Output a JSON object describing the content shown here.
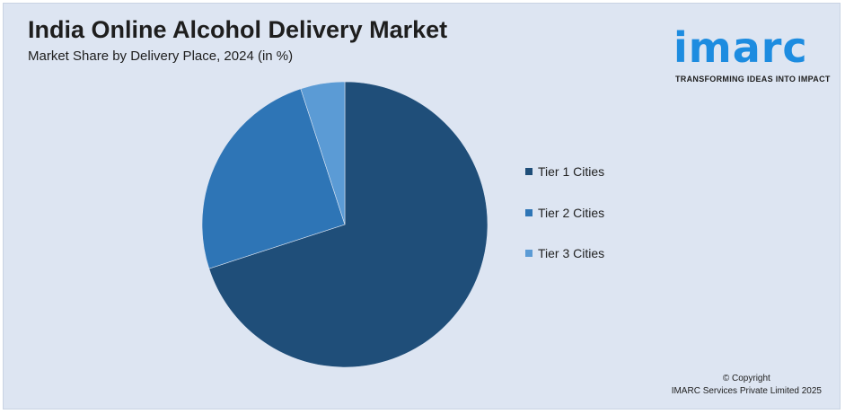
{
  "header": {
    "title": "India Online Alcohol Delivery Market",
    "subtitle": "Market Share by Delivery Place, 2024 (in %)"
  },
  "logo": {
    "wordmark": "imarc",
    "tagline": "TRANSFORMING IDEAS INTO IMPACT",
    "color": "#1d8ce0"
  },
  "chart_data": {
    "type": "pie",
    "categories": [
      "Tier 1 Cities",
      "Tier 2 Cities",
      "Tier 3 Cities"
    ],
    "values": [
      70,
      25,
      5
    ],
    "colors": [
      "#1f4e79",
      "#2e75b6",
      "#5b9bd5"
    ],
    "start_angle": "12 o'clock",
    "direction": "clockwise",
    "legend_position": "right"
  },
  "footer": {
    "copyright_line1": "© Copyright",
    "copyright_line2": "IMARC Services Private Limited 2025"
  },
  "colors": {
    "background": "#dde5f2",
    "text": "#1e1e1e"
  }
}
